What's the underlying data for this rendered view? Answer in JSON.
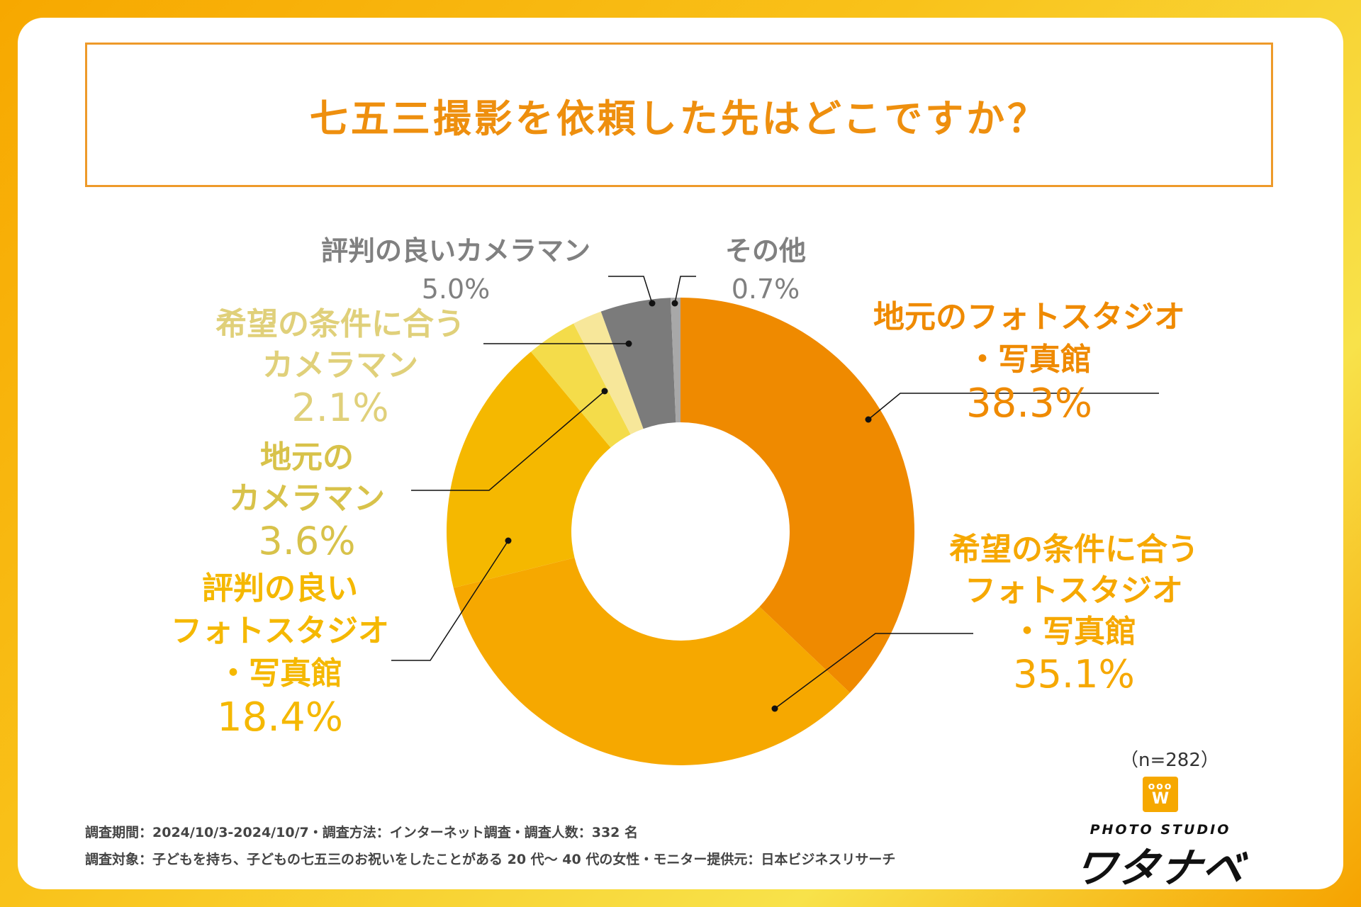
{
  "title": "七五三撮影を依頼した先はどこですか？",
  "chart_data": {
    "type": "donut",
    "title": "七五三撮影を依頼した先はどこですか？",
    "n_label": "（n=282）",
    "unit": "%",
    "slices": [
      {
        "lines": [
          "地元のフォトスタジオ",
          "・写真館"
        ],
        "value": 38.3,
        "value_label": "38.3%",
        "color": "#ef8a00",
        "text_color": "#ef8a00",
        "label_side": "right"
      },
      {
        "lines": [
          "希望の条件に合う",
          "フォトスタジオ",
          "・写真館"
        ],
        "value": 35.1,
        "value_label": "35.1%",
        "color": "#f6a800",
        "text_color": "#f6a800",
        "label_side": "right"
      },
      {
        "lines": [
          "評判の良い",
          "フォトスタジオ",
          "・写真館"
        ],
        "value": 18.4,
        "value_label": "18.4%",
        "color": "#f5b800",
        "text_color": "#f5b800",
        "label_side": "left"
      },
      {
        "lines": [
          "地元の",
          "カメラマン"
        ],
        "value": 3.6,
        "value_label": "3.6%",
        "color": "#f4dc4a",
        "text_color": "#d8c24a",
        "label_side": "left"
      },
      {
        "lines": [
          "希望の条件に合う",
          "カメラマン"
        ],
        "value": 2.1,
        "value_label": "2.1%",
        "color": "#f7e79a",
        "text_color": "#e0d07a",
        "label_side": "left"
      },
      {
        "lines": [
          "評判の良いカメラマン"
        ],
        "value": 5.0,
        "value_label": "5.0%",
        "color": "#7b7b7b",
        "text_color": "#808080",
        "label_side": "top"
      },
      {
        "lines": [
          "その他"
        ],
        "value": 0.7,
        "value_label": "0.7%",
        "color": "#a8a8a8",
        "text_color": "#808080",
        "label_side": "top"
      }
    ]
  },
  "footnotes": {
    "line1": "調査期間：2024/10/3-2024/10/7・調査方法：インターネット調査・調査人数：332 名",
    "line2": "調査対象：子どもを持ち、子どもの七五三のお祝いをしたことがある 20 代～ 40 代の女性・モニター提供元：日本ビジネスリサーチ"
  },
  "logo": {
    "mark_letter": "W",
    "mark_crown": "ooo",
    "subtitle": "PHOTO STUDIO",
    "name": "ワタナベ"
  },
  "colors": {
    "accent": "#ee8f0e",
    "background_gradient_start": "#f7a800",
    "background_gradient_end": "#f8e24a"
  }
}
